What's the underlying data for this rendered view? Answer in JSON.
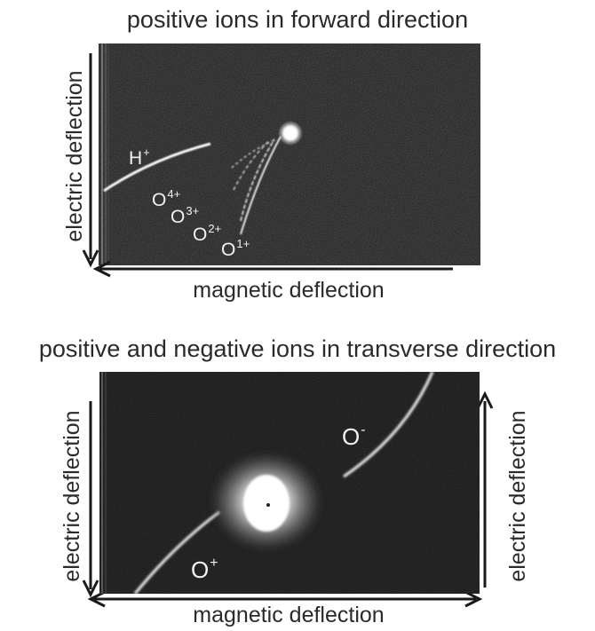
{
  "panel_top": {
    "title": "positive ions in forward direction",
    "x_axis_label": "magnetic deflection",
    "y_axis_label": "electric deflection",
    "ion_labels": [
      {
        "base": "H",
        "charge": "+"
      },
      {
        "base": "O",
        "charge": "4+"
      },
      {
        "base": "O",
        "charge": "3+"
      },
      {
        "base": "O",
        "charge": "2+"
      },
      {
        "base": "O",
        "charge": "1+"
      }
    ]
  },
  "panel_bottom": {
    "title": "positive and negative ions in transverse direction",
    "x_axis_label": "magnetic deflection",
    "y_axis_label_left": "electric deflection",
    "y_axis_label_right": "electric deflection",
    "ion_labels": [
      {
        "base": "O",
        "charge": "-"
      },
      {
        "base": "O",
        "charge": "+"
      }
    ]
  },
  "colors": {
    "background": "#ffffff",
    "detector_top": "#1c1c1c",
    "detector_bottom": "#151515",
    "trace": "#f0f0f0",
    "text": "#2a2a2a",
    "arrow": "#1a1a1a"
  }
}
